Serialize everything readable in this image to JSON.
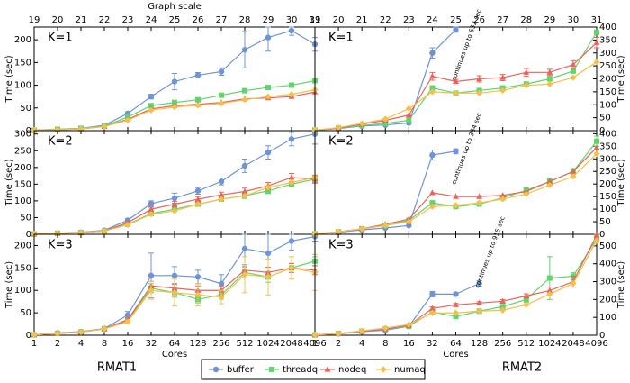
{
  "legend": [
    {
      "name": "buffer",
      "color": "#6f93d8"
    },
    {
      "name": "threadq",
      "color": "#5fd66b"
    },
    {
      "name": "nodeq",
      "color": "#e8645a"
    },
    {
      "name": "numaq",
      "color": "#f5c04a"
    }
  ],
  "chart_data": [
    {
      "type": "line",
      "title": "K=1",
      "ylabel": "Time (sec)",
      "x2label": "Graph scale",
      "x2ticks": [
        19,
        20,
        21,
        22,
        23,
        24,
        25,
        26,
        27,
        28,
        29,
        30,
        31
      ],
      "ylim": [
        0,
        228
      ],
      "yticks": [
        0,
        50,
        100,
        150,
        200
      ],
      "series": [
        {
          "values": [
            1,
            3,
            5,
            12,
            38,
            75,
            108,
            122,
            130,
            178,
            205,
            220,
            190
          ],
          "errors": [
            0,
            0,
            0,
            1,
            3,
            5,
            18,
            6,
            8,
            40,
            30,
            10,
            15
          ]
        },
        {
          "values": [
            1,
            3,
            5,
            10,
            30,
            55,
            62,
            68,
            78,
            88,
            95,
            100,
            110
          ]
        },
        {
          "values": [
            1,
            2,
            4,
            9,
            25,
            48,
            55,
            58,
            62,
            70,
            72,
            75,
            85
          ]
        },
        {
          "values": [
            1,
            2,
            4,
            9,
            23,
            45,
            52,
            56,
            60,
            68,
            75,
            80,
            90
          ]
        }
      ]
    },
    {
      "type": "line",
      "title": "K=2",
      "ylabel": "Time (sec)",
      "ylim": [
        0,
        310
      ],
      "yticks": [
        0,
        50,
        100,
        150,
        200,
        250,
        300
      ],
      "series": [
        {
          "values": [
            1,
            3,
            6,
            12,
            42,
            92,
            108,
            130,
            158,
            205,
            245,
            285,
            300
          ],
          "errors": [
            0,
            0,
            1,
            2,
            5,
            8,
            15,
            10,
            10,
            20,
            20,
            20,
            30
          ]
        },
        {
          "values": [
            1,
            3,
            5,
            10,
            30,
            62,
            75,
            90,
            105,
            115,
            130,
            150,
            165
          ],
          "errors": [
            0,
            0,
            0,
            1,
            3,
            5,
            6,
            6,
            6,
            8,
            8,
            8,
            10
          ]
        },
        {
          "values": [
            1,
            3,
            5,
            10,
            35,
            75,
            90,
            105,
            118,
            128,
            145,
            170,
            165
          ],
          "errors": [
            0,
            0,
            0,
            1,
            3,
            6,
            8,
            8,
            8,
            10,
            10,
            12,
            12
          ]
        },
        {
          "values": [
            1,
            3,
            5,
            10,
            28,
            60,
            70,
            90,
            105,
            115,
            140,
            155,
            170
          ]
        }
      ]
    },
    {
      "type": "line",
      "title": "K=3",
      "ylabel": "Time (sec)",
      "xlabel": "Cores",
      "dataset": "RMAT1",
      "categories": [
        "1",
        "2",
        "4",
        "8",
        "16",
        "32",
        "64",
        "128",
        "256",
        "512",
        "1024",
        "2048",
        "4096"
      ],
      "ylim": [
        0,
        225
      ],
      "yticks": [
        0,
        50,
        100,
        150,
        200
      ],
      "series": [
        {
          "values": [
            1,
            5,
            8,
            15,
            45,
            133,
            133,
            130,
            115,
            193,
            183,
            210,
            220
          ],
          "errors": [
            0,
            1,
            1,
            2,
            8,
            50,
            20,
            15,
            20,
            40,
            50,
            20,
            10
          ]
        },
        {
          "values": [
            1,
            4,
            7,
            14,
            33,
            105,
            95,
            80,
            90,
            140,
            130,
            150,
            165
          ],
          "errors": [
            0,
            0,
            1,
            1,
            4,
            10,
            10,
            8,
            10,
            12,
            12,
            10,
            10
          ]
        },
        {
          "values": [
            1,
            4,
            7,
            14,
            35,
            110,
            105,
            100,
            100,
            145,
            140,
            150,
            145
          ],
          "errors": [
            0,
            0,
            1,
            1,
            4,
            10,
            10,
            10,
            10,
            12,
            12,
            10,
            10
          ]
        },
        {
          "values": [
            1,
            4,
            7,
            14,
            30,
            100,
            95,
            90,
            85,
            135,
            130,
            150,
            140
          ],
          "errors": [
            0,
            0,
            1,
            1,
            4,
            20,
            30,
            25,
            15,
            40,
            40,
            25,
            40
          ]
        }
      ]
    },
    {
      "type": "line",
      "title": "K=1",
      "ylabel": "Time (sec)",
      "annotation": "continues up to 632 sec",
      "x2ticks": [
        19,
        20,
        21,
        22,
        23,
        24,
        25,
        26,
        27,
        28,
        29,
        30,
        31
      ],
      "ylim": [
        0,
        400
      ],
      "yticks": [
        0,
        50,
        100,
        150,
        200,
        250,
        300,
        350,
        400
      ],
      "series": [
        {
          "values": [
            2,
            8,
            18,
            22,
            30,
            300,
            390,
            null,
            null,
            null,
            null,
            null,
            null
          ],
          "errors": [
            0,
            0,
            1,
            1,
            2,
            20,
            10,
            null,
            null,
            null,
            null,
            null,
            null
          ]
        },
        {
          "values": [
            2,
            10,
            20,
            28,
            40,
            165,
            145,
            155,
            165,
            180,
            200,
            230,
            380
          ]
        },
        {
          "values": [
            2,
            10,
            25,
            40,
            60,
            210,
            190,
            200,
            205,
            225,
            225,
            255,
            340
          ],
          "errors": [
            0,
            0,
            1,
            2,
            4,
            15,
            8,
            12,
            12,
            15,
            12,
            15,
            20
          ]
        },
        {
          "values": [
            2,
            12,
            28,
            45,
            85,
            150,
            145,
            145,
            155,
            175,
            180,
            205,
            265
          ]
        }
      ]
    },
    {
      "type": "line",
      "title": "K=2",
      "ylabel": "Time (sec)",
      "annotation": "continues up to 384 sec",
      "ylim": [
        0,
        412
      ],
      "yticks": [
        0,
        50,
        100,
        150,
        200,
        250,
        300,
        350,
        400
      ],
      "series": [
        {
          "values": [
            2,
            8,
            18,
            25,
            35,
            315,
            330,
            null,
            null,
            null,
            null,
            null,
            null
          ],
          "errors": [
            0,
            0,
            1,
            1,
            2,
            20,
            10,
            null,
            null,
            null,
            null,
            null,
            null
          ]
        },
        {
          "values": [
            2,
            10,
            22,
            35,
            55,
            125,
            110,
            120,
            145,
            175,
            210,
            250,
            370
          ],
          "errors": [
            0,
            0,
            1,
            2,
            3,
            6,
            6,
            6,
            8,
            10,
            12,
            12,
            20
          ]
        },
        {
          "values": [
            2,
            10,
            22,
            40,
            60,
            165,
            150,
            150,
            155,
            170,
            210,
            250,
            345
          ]
        },
        {
          "values": [
            2,
            10,
            22,
            35,
            50,
            110,
            115,
            125,
            140,
            160,
            195,
            230,
            320
          ]
        }
      ]
    },
    {
      "type": "line",
      "title": "K=3",
      "ylabel": "Time (sec)",
      "annotation": "continues up to 915 sec",
      "xlabel": "Cores",
      "dataset": "RMAT2",
      "categories": [
        "1",
        "2",
        "4",
        "8",
        "16",
        "32",
        "64",
        "128",
        "256",
        "512",
        "1024",
        "2048",
        "4096"
      ],
      "ylim": [
        0,
        565
      ],
      "yticks": [
        0,
        100,
        200,
        300,
        400,
        500
      ],
      "series": [
        {
          "values": [
            2,
            8,
            20,
            28,
            50,
            230,
            230,
            290,
            null,
            null,
            null,
            null,
            null
          ],
          "errors": [
            0,
            0,
            1,
            1,
            3,
            15,
            8,
            15,
            null,
            null,
            null,
            null,
            null
          ]
        },
        {
          "values": [
            2,
            10,
            22,
            35,
            50,
            130,
            105,
            135,
            160,
            200,
            320,
            330,
            540
          ],
          "errors": [
            0,
            0,
            1,
            2,
            3,
            6,
            6,
            8,
            10,
            15,
            120,
            20,
            20
          ]
        },
        {
          "values": [
            2,
            10,
            22,
            35,
            55,
            150,
            170,
            180,
            190,
            220,
            250,
            300,
            560
          ],
          "errors": [
            0,
            0,
            1,
            2,
            3,
            8,
            8,
            8,
            10,
            12,
            20,
            30,
            20
          ]
        },
        {
          "values": [
            2,
            10,
            25,
            40,
            60,
            125,
            125,
            135,
            140,
            170,
            230,
            290,
            530
          ]
        }
      ]
    }
  ]
}
